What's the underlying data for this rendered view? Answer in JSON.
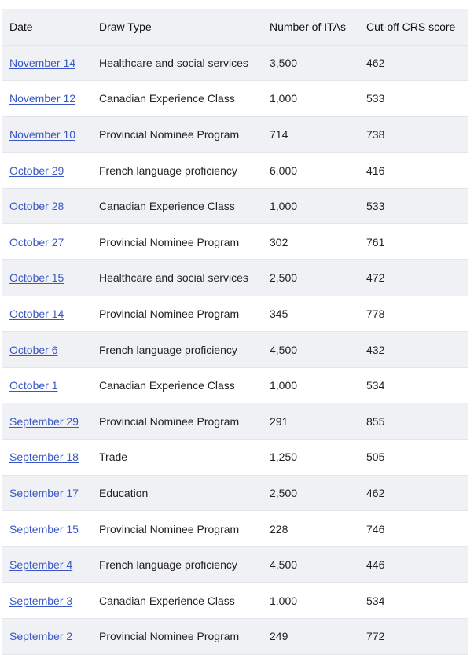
{
  "table": {
    "headers": [
      "Date",
      "Draw Type",
      "Number of ITAs",
      "Cut-off CRS score"
    ],
    "rows": [
      {
        "date": "November 14",
        "type": "Healthcare and social services",
        "itas": "3,500",
        "crs": "462"
      },
      {
        "date": "November 12",
        "type": "Canadian Experience Class",
        "itas": "1,000",
        "crs": "533"
      },
      {
        "date": "November 10",
        "type": "Provincial Nominee Program",
        "itas": "714",
        "crs": "738"
      },
      {
        "date": "October 29",
        "type": "French language proficiency",
        "itas": "6,000",
        "crs": "416"
      },
      {
        "date": "October 28",
        "type": "Canadian Experience Class",
        "itas": "1,000",
        "crs": "533"
      },
      {
        "date": "October 27",
        "type": "Provincial Nominee Program",
        "itas": "302",
        "crs": "761"
      },
      {
        "date": "October 15",
        "type": "Healthcare and social services",
        "itas": "2,500",
        "crs": "472"
      },
      {
        "date": "October 14",
        "type": "Provincial Nominee Program",
        "itas": "345",
        "crs": "778"
      },
      {
        "date": "October 6",
        "type": "French language proficiency",
        "itas": "4,500",
        "crs": "432"
      },
      {
        "date": "October 1",
        "type": "Canadian Experience Class",
        "itas": "1,000",
        "crs": "534"
      },
      {
        "date": "September 29",
        "type": "Provincial Nominee Program",
        "itas": "291",
        "crs": "855"
      },
      {
        "date": "September 18",
        "type": "Trade",
        "itas": "1,250",
        "crs": "505"
      },
      {
        "date": "September 17",
        "type": "Education",
        "itas": "2,500",
        "crs": "462"
      },
      {
        "date": "September 15",
        "type": "Provincial Nominee Program",
        "itas": "228",
        "crs": "746"
      },
      {
        "date": "September 4",
        "type": "French language proficiency",
        "itas": "4,500",
        "crs": "446"
      },
      {
        "date": "September 3",
        "type": "Canadian Experience Class",
        "itas": "1,000",
        "crs": "534"
      },
      {
        "date": "September 2",
        "type": "Provincial Nominee Program",
        "itas": "249",
        "crs": "772"
      }
    ]
  },
  "colors": {
    "link": "#3a57c4",
    "row_stripe": "#f0f1f5",
    "border": "#e3e5e8"
  }
}
